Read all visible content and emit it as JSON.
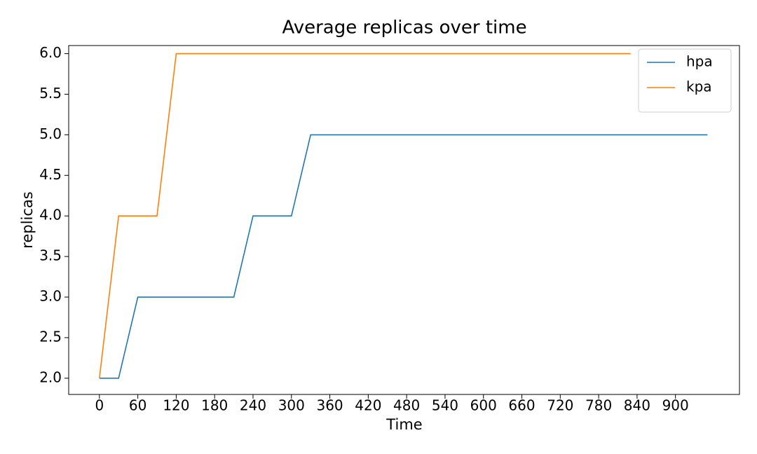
{
  "chart_data": {
    "type": "line",
    "title": "Average replicas over time",
    "xlabel": "Time",
    "ylabel": "replicas",
    "series": [
      {
        "name": "hpa",
        "color": "#1f77b4",
        "x": [
          0,
          30,
          60,
          210,
          240,
          300,
          330,
          950
        ],
        "values": [
          2,
          2,
          3,
          3,
          4,
          4,
          5,
          5
        ]
      },
      {
        "name": "kpa",
        "color": "#ff7f0e",
        "x": [
          0,
          30,
          90,
          120,
          830
        ],
        "values": [
          2,
          4,
          4,
          6,
          6
        ]
      }
    ],
    "xlim": [
      -48,
      1000
    ],
    "xticks": [
      0,
      60,
      120,
      180,
      240,
      300,
      360,
      420,
      480,
      540,
      600,
      660,
      720,
      780,
      840,
      900
    ],
    "ylim": [
      1.8,
      6.1
    ],
    "yticks": [
      {
        "value": 2,
        "label": "2.0"
      },
      {
        "value": 2.5,
        "label": "2.5"
      },
      {
        "value": 3,
        "label": "3.0"
      },
      {
        "value": 3.5,
        "label": "3.5"
      },
      {
        "value": 4,
        "label": "4.0"
      },
      {
        "value": 4.5,
        "label": "4.5"
      },
      {
        "value": 5,
        "label": "5.0"
      },
      {
        "value": 5.5,
        "label": "5.5"
      },
      {
        "value": 6,
        "label": "6.0"
      }
    ],
    "legend": "upper right"
  }
}
